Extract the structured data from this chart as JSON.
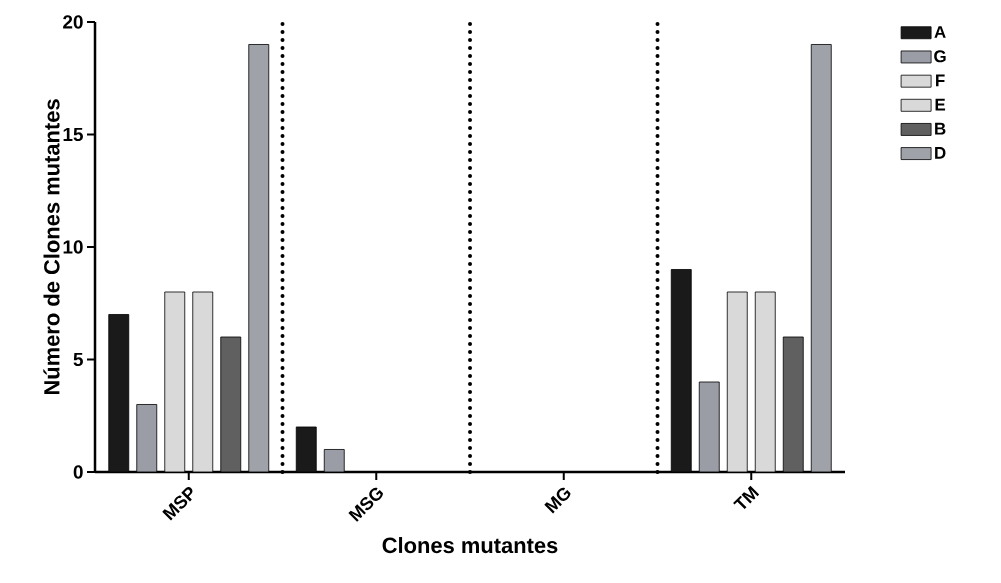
{
  "chart_data": {
    "type": "bar",
    "xlabel": "Clones mutantes",
    "ylabel": "Número de Clones mutantes",
    "categories": [
      "MSP",
      "MSG",
      "MG",
      "TM"
    ],
    "series": [
      {
        "name": "A",
        "color": "#1a1a1a",
        "values": [
          7,
          2,
          0,
          9
        ]
      },
      {
        "name": "G",
        "color": "#9a9ca6",
        "values": [
          3,
          1,
          0,
          4
        ]
      },
      {
        "name": "F",
        "color": "#d9d9d9",
        "values": [
          8,
          0,
          0,
          8
        ]
      },
      {
        "name": "E",
        "color": "#d9d9d9",
        "values": [
          8,
          0,
          0,
          8
        ]
      },
      {
        "name": "B",
        "color": "#606060",
        "values": [
          6,
          0,
          0,
          6
        ]
      },
      {
        "name": "D",
        "color": "#a0a2aa",
        "values": [
          19,
          0,
          0,
          19
        ]
      }
    ],
    "ylim": [
      0,
      20
    ],
    "yticks": [
      0,
      5,
      10,
      15,
      20
    ],
    "grid": false,
    "legend": "top right"
  }
}
